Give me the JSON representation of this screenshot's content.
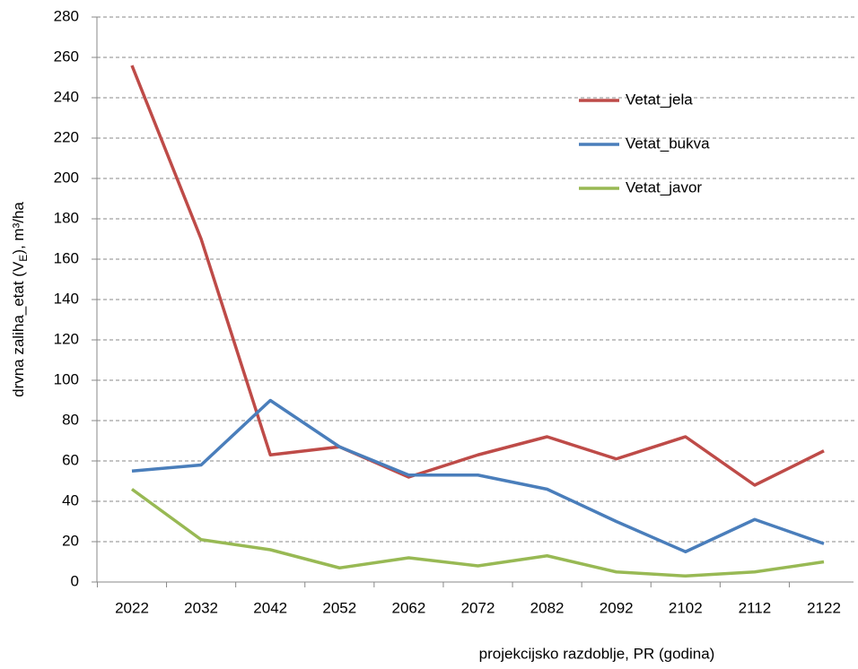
{
  "chart_data": {
    "type": "line",
    "y_label": [
      "drvna zaliha_etat (V",
      "E",
      "), m³/ha"
    ],
    "x_label": "projekcijsko razdoblje, PR (godina)",
    "categories": [
      "2022",
      "2032",
      "2042",
      "2052",
      "2062",
      "2072",
      "2082",
      "2092",
      "2102",
      "2112",
      "2122"
    ],
    "series": [
      {
        "name": "Vetat_jela",
        "color": "#be4b48",
        "values": [
          256,
          170,
          63,
          67,
          52,
          63,
          72,
          61,
          72,
          48,
          65
        ]
      },
      {
        "name": "Vetat_bukva",
        "color": "#4a7ebb",
        "values": [
          55,
          58,
          90,
          67,
          53,
          53,
          46,
          30,
          15,
          31,
          19
        ]
      },
      {
        "name": "Vetat_javor",
        "color": "#98b954",
        "values": [
          46,
          21,
          16,
          7,
          12,
          8,
          13,
          5,
          3,
          5,
          10
        ]
      }
    ],
    "ylim": [
      0,
      280
    ],
    "yticks": [
      0,
      20,
      40,
      60,
      80,
      100,
      120,
      140,
      160,
      180,
      200,
      220,
      240,
      260,
      280
    ],
    "grid": true,
    "legend": "upper right"
  }
}
